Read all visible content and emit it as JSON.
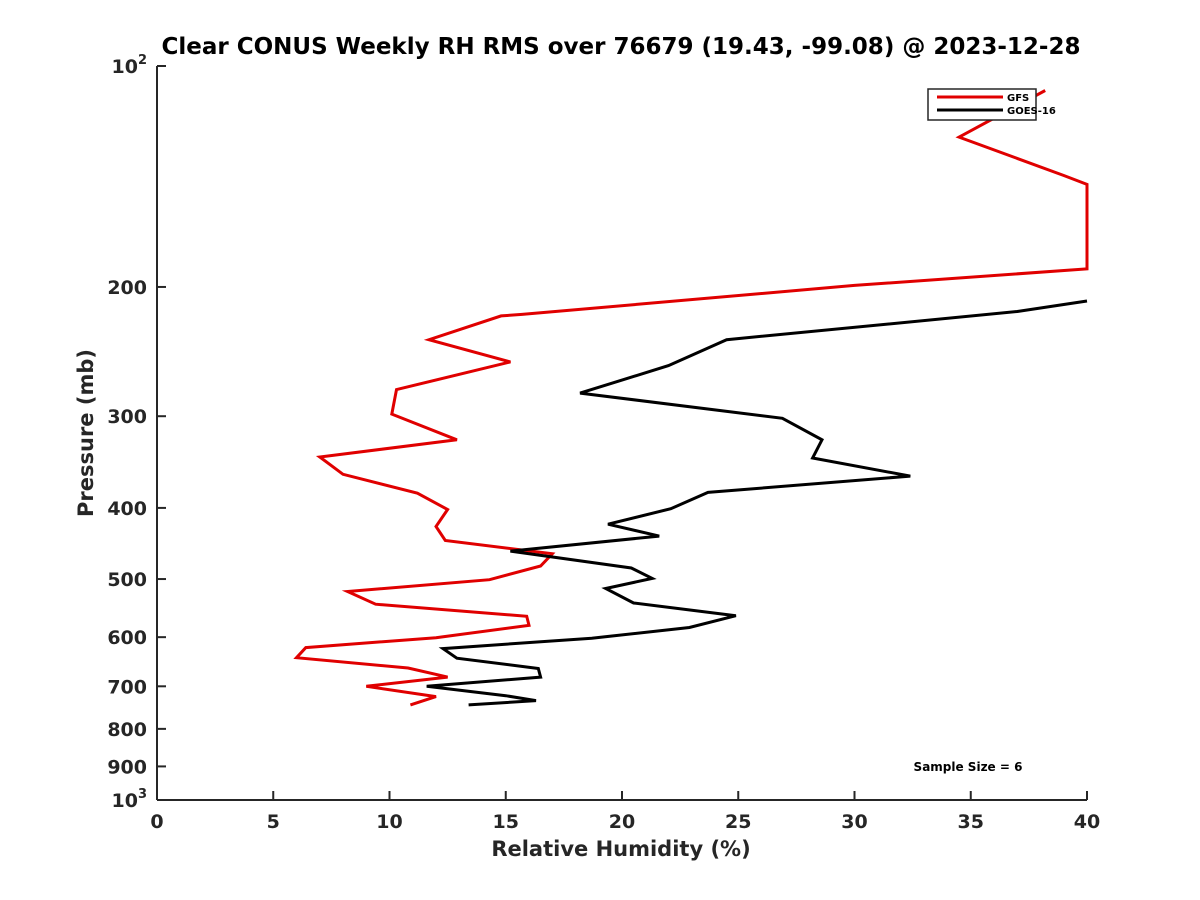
{
  "chart_data": {
    "type": "line",
    "title": "Clear CONUS Weekly RH RMS over 76679 (19.43, -99.08) @ 2023-12-28",
    "xlabel": "Relative Humidity (%)",
    "ylabel": "Pressure (mb)",
    "xlim": [
      0,
      40
    ],
    "ylim": [
      100,
      1000
    ],
    "yscale": "log",
    "y_reversed": true,
    "grid": false,
    "legend_position": "top-right",
    "x_ticks": [
      0,
      5,
      10,
      15,
      20,
      25,
      30,
      35,
      40
    ],
    "y_ticks": [
      {
        "value": 100,
        "base": "10",
        "exp": "2"
      },
      {
        "value": 200,
        "label": "200"
      },
      {
        "value": 300,
        "label": "300"
      },
      {
        "value": 400,
        "label": "400"
      },
      {
        "value": 500,
        "label": "500"
      },
      {
        "value": 600,
        "label": "600"
      },
      {
        "value": 700,
        "label": "700"
      },
      {
        "value": 800,
        "label": "800"
      },
      {
        "value": 900,
        "label": "900"
      },
      {
        "value": 1000,
        "base": "10",
        "exp": "3"
      }
    ],
    "series": [
      {
        "name": "GFS",
        "color": "#e00000",
        "points": [
          [
            38.2,
            108
          ],
          [
            34.5,
            125
          ],
          [
            39.0,
            141
          ],
          [
            40.0,
            145
          ],
          [
            40.0,
            189
          ],
          [
            30.0,
            199
          ],
          [
            15.7,
            218
          ],
          [
            14.8,
            219
          ],
          [
            11.7,
            236
          ],
          [
            15.2,
            253
          ],
          [
            10.3,
            276
          ],
          [
            10.1,
            298
          ],
          [
            12.9,
            323
          ],
          [
            7.0,
            341
          ],
          [
            8.0,
            360
          ],
          [
            11.2,
            382
          ],
          [
            12.5,
            402
          ],
          [
            12.0,
            424
          ],
          [
            12.4,
            443
          ],
          [
            17.0,
            462
          ],
          [
            16.5,
            480
          ],
          [
            14.3,
            501
          ],
          [
            8.2,
            520
          ],
          [
            9.4,
            541
          ],
          [
            15.9,
            562
          ],
          [
            16.0,
            578
          ],
          [
            12.0,
            601
          ],
          [
            6.4,
            620
          ],
          [
            6.0,
            640
          ],
          [
            10.8,
            661
          ],
          [
            12.5,
            680
          ],
          [
            9.0,
            700
          ],
          [
            12.0,
            723
          ],
          [
            10.9,
            742
          ]
        ]
      },
      {
        "name": "GOES-16",
        "color": "#000000",
        "points": [
          [
            40.0,
            209
          ],
          [
            37.0,
            216
          ],
          [
            24.5,
            236
          ],
          [
            22.0,
            256
          ],
          [
            18.2,
            279
          ],
          [
            26.9,
            302
          ],
          [
            28.6,
            323
          ],
          [
            28.2,
            342
          ],
          [
            32.4,
            362
          ],
          [
            23.7,
            381
          ],
          [
            22.1,
            401
          ],
          [
            19.4,
            421
          ],
          [
            21.6,
            437
          ],
          [
            15.2,
            458
          ],
          [
            20.4,
            483
          ],
          [
            21.3,
            499
          ],
          [
            19.3,
            515
          ],
          [
            20.5,
            539
          ],
          [
            24.9,
            561
          ],
          [
            22.9,
            582
          ],
          [
            18.7,
            602
          ],
          [
            12.3,
            622
          ],
          [
            12.9,
            641
          ],
          [
            16.4,
            662
          ],
          [
            16.5,
            680
          ],
          [
            11.6,
            700
          ],
          [
            15.0,
            721
          ],
          [
            16.3,
            732
          ],
          [
            13.4,
            742
          ]
        ]
      }
    ],
    "annotation": "Sample Size = 6"
  }
}
